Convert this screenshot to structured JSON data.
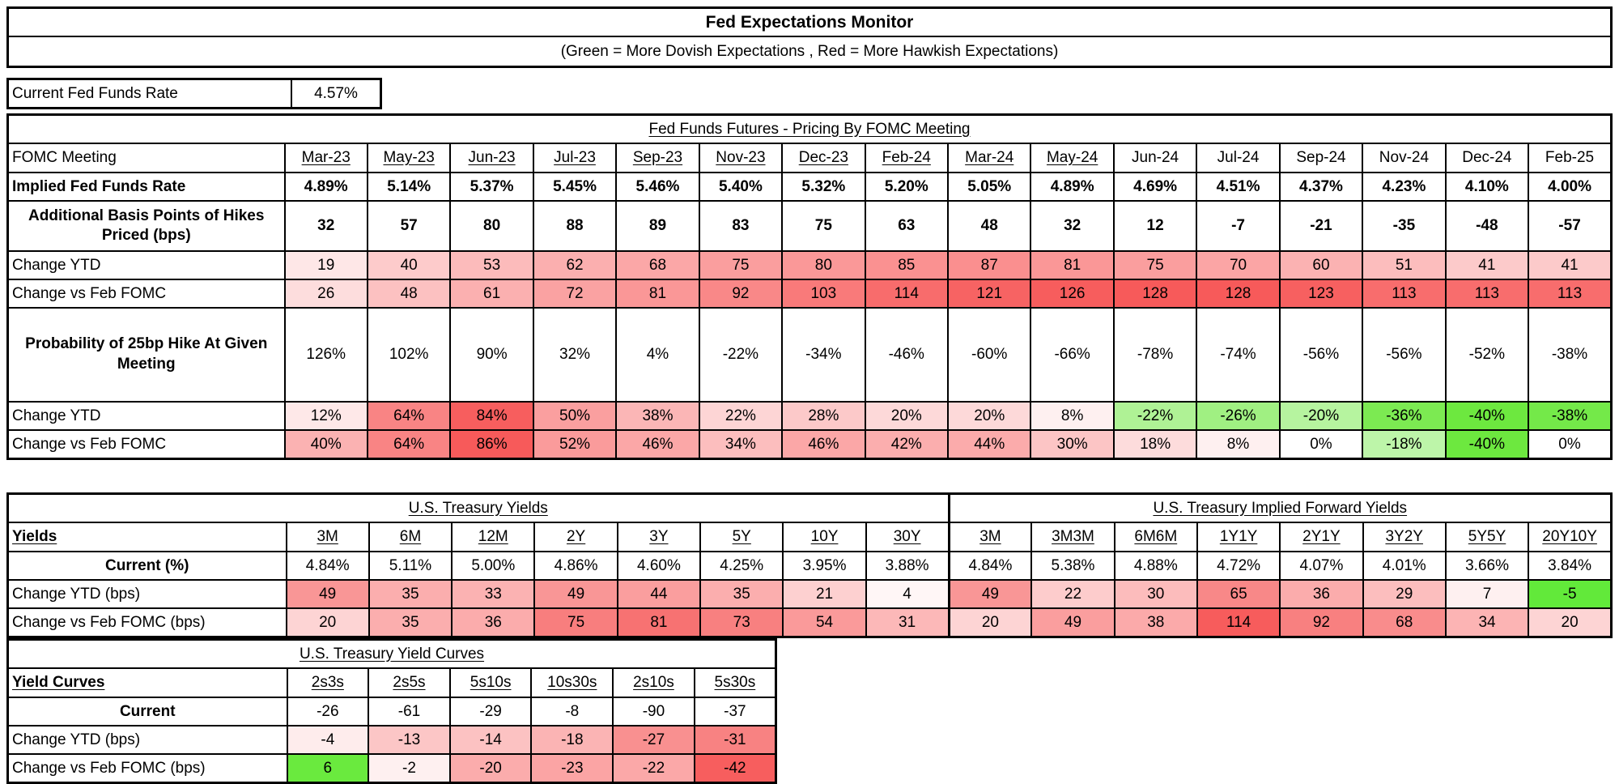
{
  "header": {
    "title": "Fed Expectations Monitor",
    "subtitle": "(Green = More Dovish Expectations , Red = More Hawkish Expectations)"
  },
  "current_rate": {
    "label": "Current Fed Funds Rate",
    "value": "4.57%"
  },
  "legend_colors": {
    "dovish_green_max": "#6DE83F",
    "hawkish_red_max": "#F75A5A",
    "border": "#000000"
  },
  "futures_table": {
    "title": "Fed Funds Futures - Pricing By FOMC Meeting",
    "corner_label": "FOMC Meeting",
    "columns": [
      {
        "label": "Mar-23",
        "u": true
      },
      {
        "label": "May-23",
        "u": true
      },
      {
        "label": "Jun-23",
        "u": true
      },
      {
        "label": "Jul-23",
        "u": true
      },
      {
        "label": "Sep-23",
        "u": true
      },
      {
        "label": "Nov-23",
        "u": true
      },
      {
        "label": "Dec-23",
        "u": true
      },
      {
        "label": "Feb-24",
        "u": true
      },
      {
        "label": "Mar-24",
        "u": true
      },
      {
        "label": "May-24",
        "u": true
      },
      {
        "label": "Jun-24",
        "u": false
      },
      {
        "label": "Jul-24",
        "u": false
      },
      {
        "label": "Sep-24",
        "u": false
      },
      {
        "label": "Nov-24",
        "u": false
      },
      {
        "label": "Dec-24",
        "u": false
      },
      {
        "label": "Feb-25",
        "u": false
      }
    ],
    "rows": [
      {
        "label": "Implied Fed Funds Rate",
        "label_bold": true,
        "values_bold": true,
        "values": [
          "4.89%",
          "5.14%",
          "5.37%",
          "5.45%",
          "5.46%",
          "5.40%",
          "5.32%",
          "5.20%",
          "5.05%",
          "4.89%",
          "4.69%",
          "4.51%",
          "4.37%",
          "4.23%",
          "4.10%",
          "4.00%"
        ]
      },
      {
        "label": "Additional Basis Points of Hikes Priced (bps)",
        "label_bold": true,
        "label_align": "center",
        "values_bold": true,
        "h": "tall",
        "values": [
          "32",
          "57",
          "80",
          "88",
          "89",
          "83",
          "75",
          "63",
          "48",
          "32",
          "12",
          "-7",
          "-21",
          "-35",
          "-48",
          "-57"
        ]
      },
      {
        "label": "Change YTD",
        "values": [
          "19",
          "40",
          "53",
          "62",
          "68",
          "75",
          "80",
          "85",
          "87",
          "81",
          "75",
          "70",
          "60",
          "51",
          "41",
          "41"
        ],
        "colors": [
          "#FEE7E7",
          "#FDCBCB",
          "#FCBBBB",
          "#FBAFAF",
          "#FBA7A7",
          "#FA9E9E",
          "#FA9898",
          "#FA9191",
          "#FA8F8F",
          "#FA9797",
          "#FA9E9E",
          "#FBA5A5",
          "#FBB2B2",
          "#FCBDBD",
          "#FCCACA",
          "#FCCACA"
        ]
      },
      {
        "label": "Change vs Feb FOMC",
        "values": [
          "26",
          "48",
          "61",
          "72",
          "81",
          "92",
          "103",
          "114",
          "121",
          "126",
          "128",
          "128",
          "123",
          "113",
          "113",
          "113"
        ],
        "colors": [
          "#FDDDDD",
          "#FCC1C1",
          "#FBB0B0",
          "#FAA2A2",
          "#FA9797",
          "#F98888",
          "#F97A7A",
          "#F86C6C",
          "#F76363",
          "#F75D5D",
          "#F75A5A",
          "#F75A5A",
          "#F76060",
          "#F86D6D",
          "#F86D6D",
          "#F86D6D"
        ]
      },
      {
        "label": "Probability of 25bp Hike At Given Meeting",
        "label_bold": true,
        "label_align": "center",
        "h": "xtall",
        "values": [
          "126%",
          "102%",
          "90%",
          "32%",
          "4%",
          "-22%",
          "-34%",
          "-46%",
          "-60%",
          "-66%",
          "-78%",
          "-74%",
          "-56%",
          "-56%",
          "-52%",
          "-38%"
        ]
      },
      {
        "label": "Change YTD",
        "values": [
          "12%",
          "64%",
          "84%",
          "50%",
          "38%",
          "22%",
          "28%",
          "20%",
          "20%",
          "8%",
          "-22%",
          "-26%",
          "-20%",
          "-36%",
          "-40%",
          "-38%"
        ],
        "colors": [
          "#FEE8E8",
          "#F98484",
          "#F75E5E",
          "#FA9F9F",
          "#FBB6B6",
          "#FDD5D5",
          "#FCC9C9",
          "#FDD9D9",
          "#FDD9D9",
          "#FEF0F0",
          "#AFF295",
          "#A0F082",
          "#B6F49F",
          "#7CEA52",
          "#6DE83F",
          "#74E949"
        ]
      },
      {
        "label": "Change vs Feb FOMC",
        "values": [
          "40%",
          "64%",
          "86%",
          "52%",
          "46%",
          "34%",
          "46%",
          "42%",
          "44%",
          "30%",
          "18%",
          "8%",
          "0%",
          "-18%",
          "-40%",
          "0%"
        ],
        "colors": [
          "#FBB2B2",
          "#F98484",
          "#F75A5A",
          "#FA9B9B",
          "#FBA7A7",
          "#FCBEBE",
          "#FBA7A7",
          "#FBAEAE",
          "#FBABAB",
          "#FCC5C5",
          "#FDDCDC",
          "#FEF0F0",
          "#FFFFFF",
          "#BDF5A9",
          "#6DE83F",
          "#FFFFFF"
        ]
      }
    ]
  },
  "treasury_table": {
    "titles": [
      {
        "text": "U.S. Treasury Yields",
        "span": 9
      },
      {
        "text": "U.S. Treasury Implied Forward Yields",
        "span": 8
      }
    ],
    "corner_label": "Yields",
    "corner_bold_underline": true,
    "columns": [
      {
        "label": "3M",
        "u": true
      },
      {
        "label": "6M",
        "u": true
      },
      {
        "label": "12M",
        "u": true
      },
      {
        "label": "2Y",
        "u": true
      },
      {
        "label": "3Y",
        "u": true
      },
      {
        "label": "5Y",
        "u": true
      },
      {
        "label": "10Y",
        "u": true
      },
      {
        "label": "30Y",
        "u": true
      },
      {
        "label": "3M",
        "u": true
      },
      {
        "label": "3M3M",
        "u": true
      },
      {
        "label": "6M6M",
        "u": true
      },
      {
        "label": "1Y1Y",
        "u": true
      },
      {
        "label": "2Y1Y",
        "u": true
      },
      {
        "label": "3Y2Y",
        "u": true
      },
      {
        "label": "5Y5Y",
        "u": true
      },
      {
        "label": "20Y10Y",
        "u": true
      }
    ],
    "rows": [
      {
        "label": "Current (%)",
        "label_bold": true,
        "label_align": "center",
        "values": [
          "4.84%",
          "5.11%",
          "5.00%",
          "4.86%",
          "4.60%",
          "4.25%",
          "3.95%",
          "3.88%",
          "4.84%",
          "5.38%",
          "4.88%",
          "4.72%",
          "4.07%",
          "4.01%",
          "3.66%",
          "3.84%"
        ]
      },
      {
        "label": "Change YTD (bps)",
        "values": [
          "49",
          "35",
          "33",
          "49",
          "44",
          "35",
          "21",
          "4",
          "49",
          "22",
          "30",
          "65",
          "36",
          "29",
          "7",
          "-5"
        ],
        "colors": [
          "#F99696",
          "#FBAEAE",
          "#FBB2B2",
          "#F99696",
          "#FA9E9E",
          "#FBAEAE",
          "#FDD0D0",
          "#FFF6F6",
          "#F99696",
          "#FDCCCC",
          "#FCBCBC",
          "#F88888",
          "#FBACAC",
          "#FCBEBE",
          "#FEF0F0",
          "#62E93A"
        ]
      },
      {
        "label": "Change vs Feb FOMC (bps)",
        "values": [
          "20",
          "35",
          "36",
          "75",
          "81",
          "73",
          "54",
          "31",
          "20",
          "49",
          "38",
          "114",
          "92",
          "68",
          "34",
          "20"
        ],
        "colors": [
          "#FDD4D4",
          "#FBAEAE",
          "#FBACAC",
          "#F87E7E",
          "#F77272",
          "#F88080",
          "#FA9A9A",
          "#FCB8B8",
          "#FDD4D4",
          "#FA9E9E",
          "#FBAAAA",
          "#F75C5C",
          "#F88080",
          "#F98C8C",
          "#FCB4B4",
          "#FDD4D4"
        ]
      }
    ]
  },
  "curves_table": {
    "title": "U.S. Treasury Yield Curves",
    "corner_label": "Yield Curves",
    "corner_bold_underline": true,
    "columns": [
      {
        "label": "2s3s",
        "u": true
      },
      {
        "label": "2s5s",
        "u": true
      },
      {
        "label": "5s10s",
        "u": true
      },
      {
        "label": "10s30s",
        "u": true
      },
      {
        "label": "2s10s",
        "u": true
      },
      {
        "label": "5s30s",
        "u": true
      }
    ],
    "rows": [
      {
        "label": "Current",
        "label_bold": true,
        "label_align": "center",
        "values": [
          "-26",
          "-61",
          "-29",
          "-8",
          "-90",
          "-37"
        ]
      },
      {
        "label": "Change YTD (bps)",
        "values": [
          "-4",
          "-13",
          "-14",
          "-18",
          "-27",
          "-31"
        ],
        "colors": [
          "#FEECEC",
          "#FCC6C6",
          "#FCC2C2",
          "#FBB4B4",
          "#F99090",
          "#F88282"
        ]
      },
      {
        "label": "Change vs Feb FOMC (bps)",
        "values": [
          "6",
          "-2",
          "-20",
          "-23",
          "-22",
          "-42"
        ],
        "colors": [
          "#6AEA3E",
          "#FEF0F0",
          "#FBACAC",
          "#FBA4A4",
          "#FBA8A8",
          "#F75E5E"
        ]
      }
    ]
  }
}
